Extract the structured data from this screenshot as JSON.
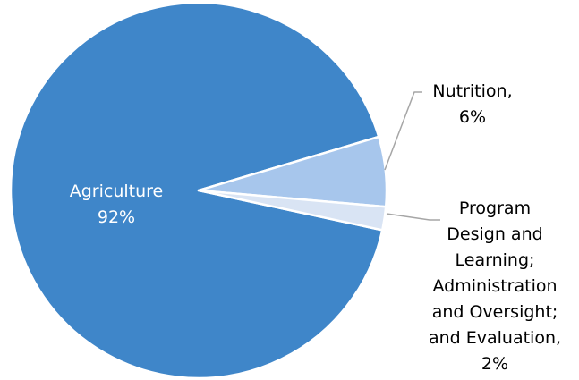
{
  "chart_data": {
    "type": "pie",
    "slices": [
      {
        "name": "Agriculture",
        "value": 92,
        "label_lines": [
          "Agriculture",
          "92%"
        ],
        "color": "#3f86c9"
      },
      {
        "name": "Nutrition",
        "value": 6,
        "label_lines": [
          "Nutrition,",
          "6%"
        ],
        "color": "#a7c6ec"
      },
      {
        "name": "Program Design and Learning; Administration and Oversight; and Evaluation",
        "value": 2,
        "label_lines": [
          "Program",
          "Design and",
          "Learning;",
          "Administration",
          "and Oversight;",
          "and Evaluation,",
          "2%"
        ],
        "color": "#d9e4f4"
      }
    ],
    "colors": {
      "slice_border": "#ffffff",
      "leader_line": "#a6a6a6",
      "inside_label": "#ffffff",
      "outside_label": "#000000"
    }
  }
}
